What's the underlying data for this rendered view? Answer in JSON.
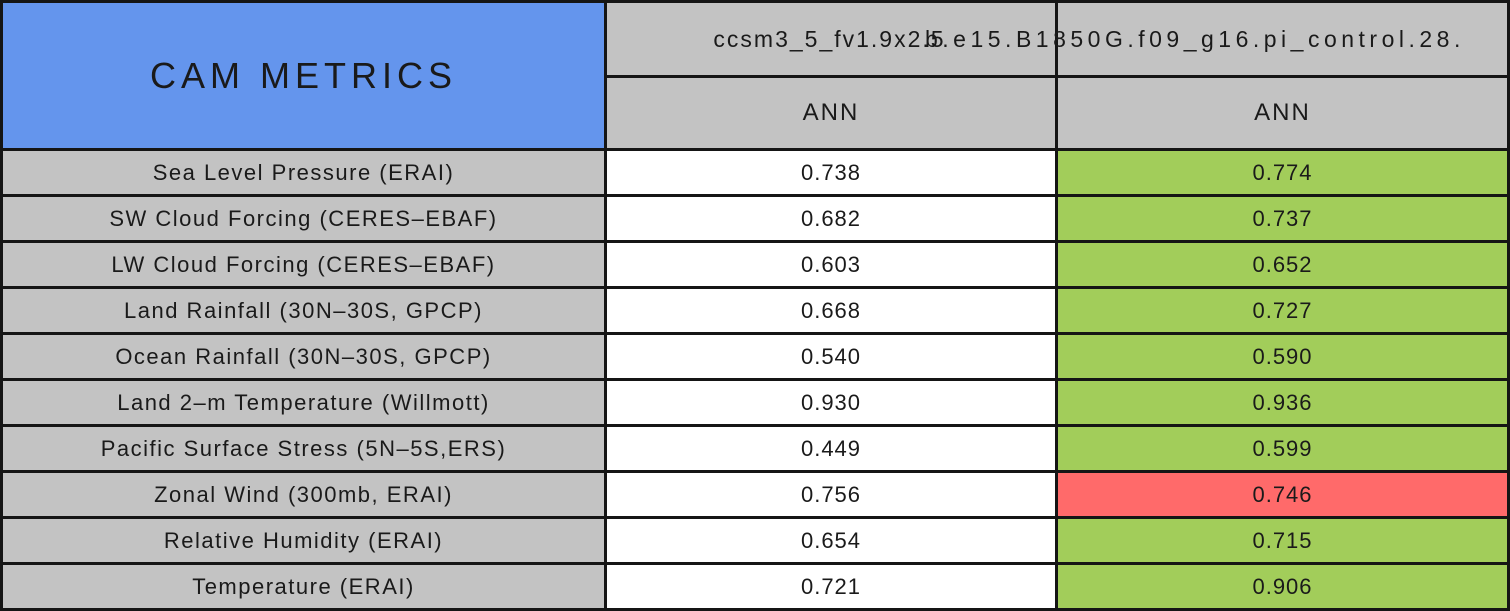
{
  "table": {
    "title": "CAM METRICS",
    "columns": [
      {
        "model": "ccsm3_5_fv1.9x2.5",
        "season": "ANN"
      },
      {
        "model": "b.e15.B1850G.f09_g16.pi_control.28.",
        "season": "ANN"
      }
    ],
    "rows": [
      {
        "label": "Sea Level Pressure (ERAI)",
        "values": [
          {
            "value": "0.738",
            "status": "neutral"
          },
          {
            "value": "0.774",
            "status": "better"
          }
        ]
      },
      {
        "label": "SW Cloud Forcing (CERES–EBAF)",
        "values": [
          {
            "value": "0.682",
            "status": "neutral"
          },
          {
            "value": "0.737",
            "status": "better"
          }
        ]
      },
      {
        "label": "LW Cloud Forcing (CERES–EBAF)",
        "values": [
          {
            "value": "0.603",
            "status": "neutral"
          },
          {
            "value": "0.652",
            "status": "better"
          }
        ]
      },
      {
        "label": "Land Rainfall (30N–30S, GPCP)",
        "values": [
          {
            "value": "0.668",
            "status": "neutral"
          },
          {
            "value": "0.727",
            "status": "better"
          }
        ]
      },
      {
        "label": "Ocean Rainfall (30N–30S, GPCP)",
        "values": [
          {
            "value": "0.540",
            "status": "neutral"
          },
          {
            "value": "0.590",
            "status": "better"
          }
        ]
      },
      {
        "label": "Land 2–m Temperature (Willmott)",
        "values": [
          {
            "value": "0.930",
            "status": "neutral"
          },
          {
            "value": "0.936",
            "status": "better"
          }
        ]
      },
      {
        "label": "Pacific Surface Stress (5N–5S,ERS)",
        "values": [
          {
            "value": "0.449",
            "status": "neutral"
          },
          {
            "value": "0.599",
            "status": "better"
          }
        ]
      },
      {
        "label": "Zonal Wind (300mb, ERAI)",
        "values": [
          {
            "value": "0.756",
            "status": "neutral"
          },
          {
            "value": "0.746",
            "status": "worse"
          }
        ]
      },
      {
        "label": "Relative Humidity (ERAI)",
        "values": [
          {
            "value": "0.654",
            "status": "neutral"
          },
          {
            "value": "0.715",
            "status": "better"
          }
        ]
      },
      {
        "label": "Temperature (ERAI)",
        "values": [
          {
            "value": "0.721",
            "status": "neutral"
          },
          {
            "value": "0.906",
            "status": "better"
          }
        ]
      }
    ],
    "colors": {
      "title_blue": "#6495ed",
      "cell_grey": "#c3c3c3",
      "better_green": "#a2cd5a",
      "worse_red": "#ff6a6a",
      "neutral_white": "#ffffff",
      "border_black": "#151515"
    }
  },
  "chart_data": {
    "type": "table",
    "title": "CAM METRICS",
    "columns": [
      "ccsm3_5_fv1.9x2.5 ANN",
      "b.e15.B1850G.f09_g16.pi_control.28. ANN"
    ],
    "row_labels": [
      "Sea Level Pressure (ERAI)",
      "SW Cloud Forcing (CERES–EBAF)",
      "LW Cloud Forcing (CERES–EBAF)",
      "Land Rainfall (30N–30S, GPCP)",
      "Ocean Rainfall (30N–30S, GPCP)",
      "Land 2–m Temperature (Willmott)",
      "Pacific Surface Stress (5N–5S,ERS)",
      "Zonal Wind (300mb, ERAI)",
      "Relative Humidity (ERAI)",
      "Temperature (ERAI)"
    ],
    "values": [
      [
        0.738,
        0.774
      ],
      [
        0.682,
        0.737
      ],
      [
        0.603,
        0.652
      ],
      [
        0.668,
        0.727
      ],
      [
        0.54,
        0.59
      ],
      [
        0.93,
        0.936
      ],
      [
        0.449,
        0.599
      ],
      [
        0.756,
        0.746
      ],
      [
        0.654,
        0.715
      ],
      [
        0.721,
        0.906
      ]
    ],
    "highlight": "second column green where improved vs first column, red where worse (Zonal Wind 0.746)"
  }
}
